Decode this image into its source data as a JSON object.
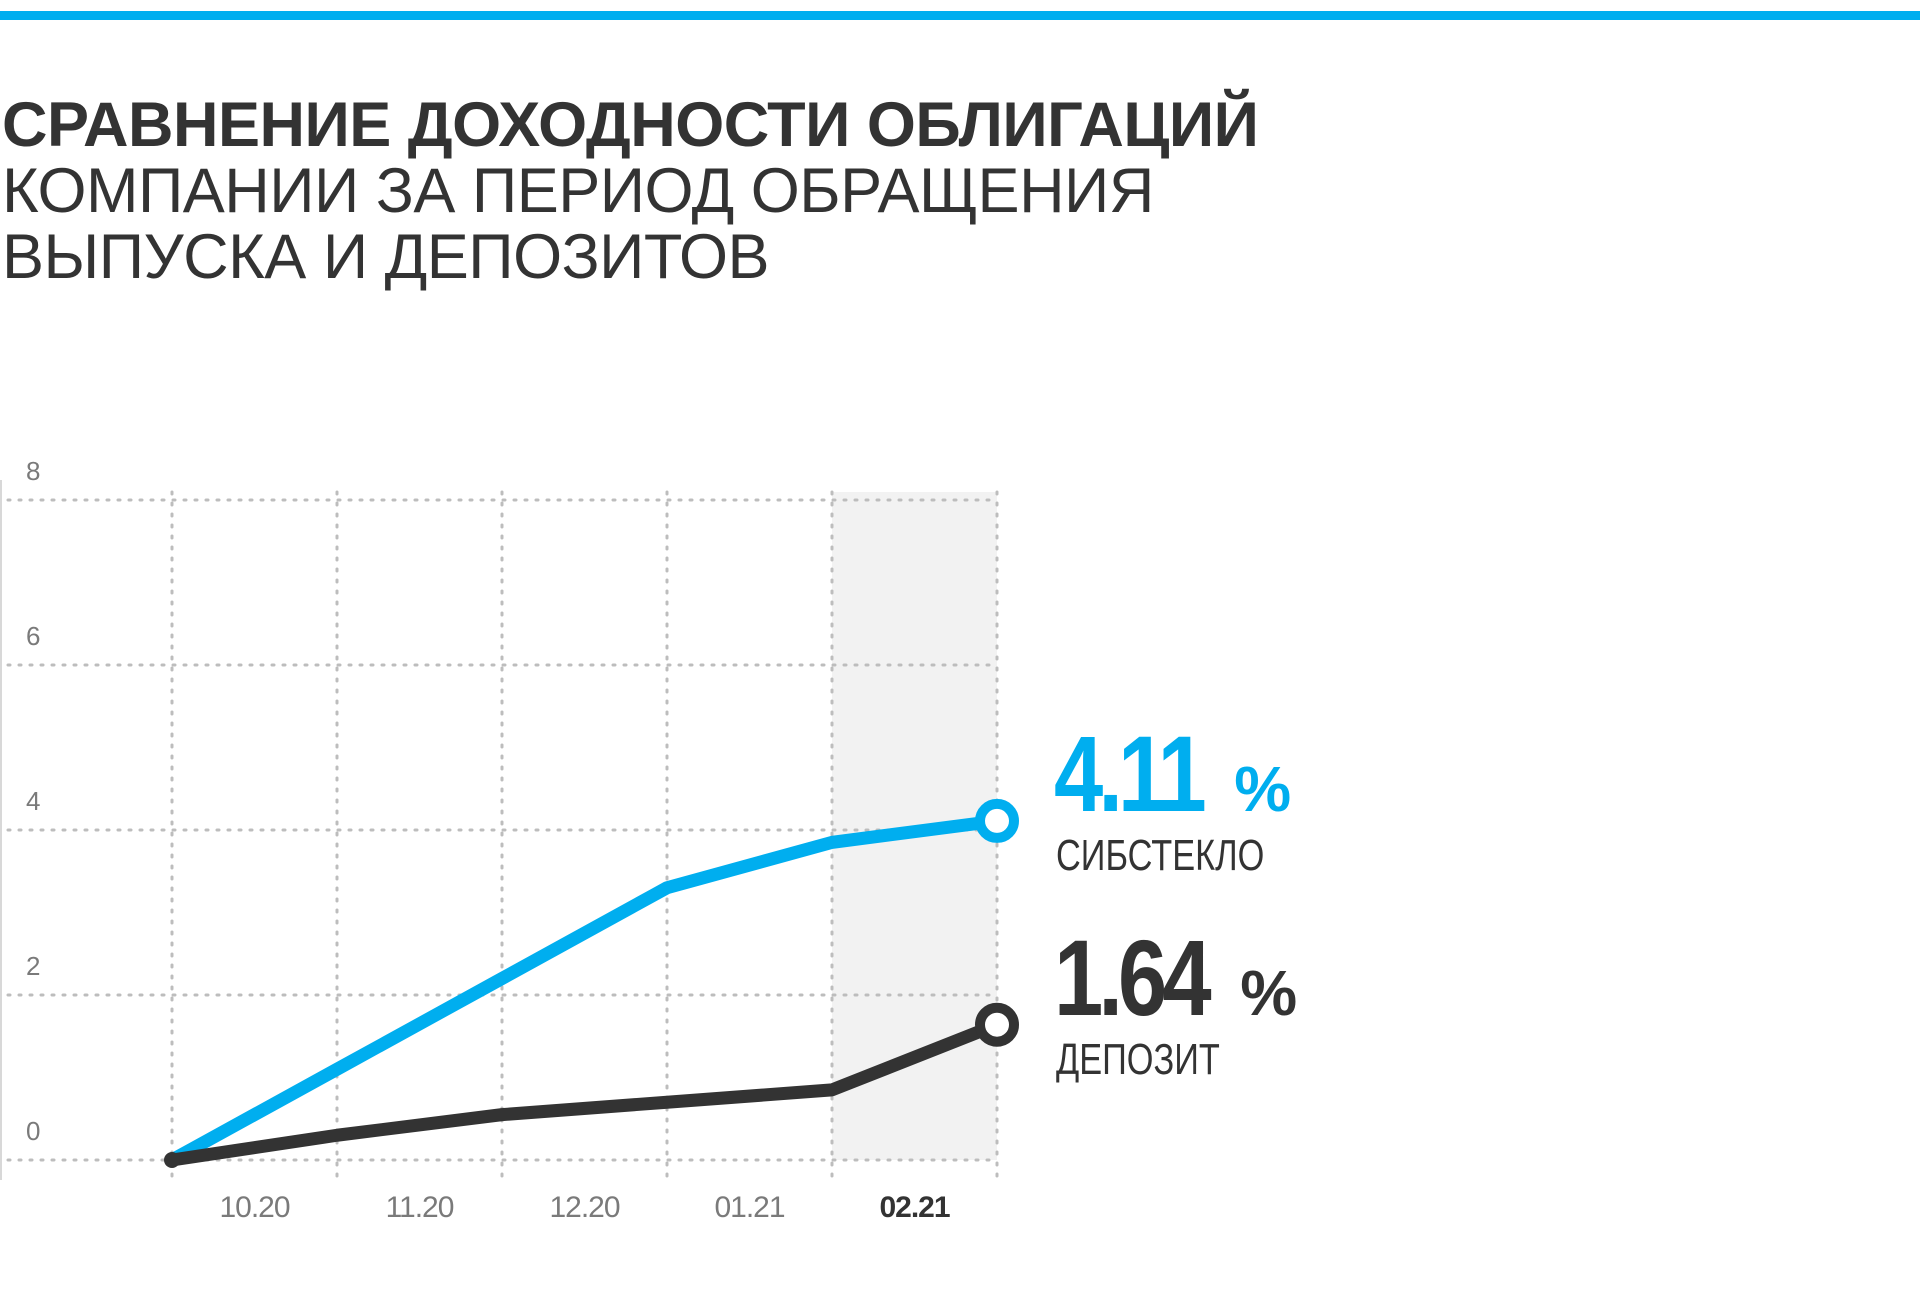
{
  "title": {
    "line1": "СРАВНЕНИЕ ДОХОДНОСТИ ОБЛИГАЦИЙ",
    "line2": "КОМПАНИИ ЗА ПЕРИОД ОБРАЩЕНИЯ",
    "line3": "ВЫПУСКА И ДЕПОЗИТОВ"
  },
  "colors": {
    "accent": "#00aeef",
    "dark": "#333333",
    "grid": "#bdbdbd",
    "highlight": "#f2f2f2",
    "axis_text": "#7a7a7a"
  },
  "chart_data": {
    "type": "line",
    "x_points": [
      "",
      "10.20",
      "11.20",
      "12.20",
      "01.21",
      "02.21"
    ],
    "x_tick_labels": [
      "10.20",
      "11.20",
      "12.20",
      "01.21",
      "02.21"
    ],
    "highlighted_tick": "02.21",
    "y_ticks": [
      "8",
      "6",
      "4",
      "2",
      "0"
    ],
    "ylim": [
      0,
      8
    ],
    "grid": "dotted",
    "series": [
      {
        "name": "СИБСТЕКЛО",
        "color": "#00aeef",
        "values": [
          0,
          1.1,
          2.2,
          3.3,
          3.85,
          4.11
        ],
        "end_value": "4.11",
        "unit": "%"
      },
      {
        "name": "ДЕПОЗИТ",
        "color": "#333333",
        "values": [
          0,
          0.3,
          0.55,
          0.7,
          0.85,
          1.64
        ],
        "end_value": "1.64",
        "unit": " %"
      }
    ]
  }
}
